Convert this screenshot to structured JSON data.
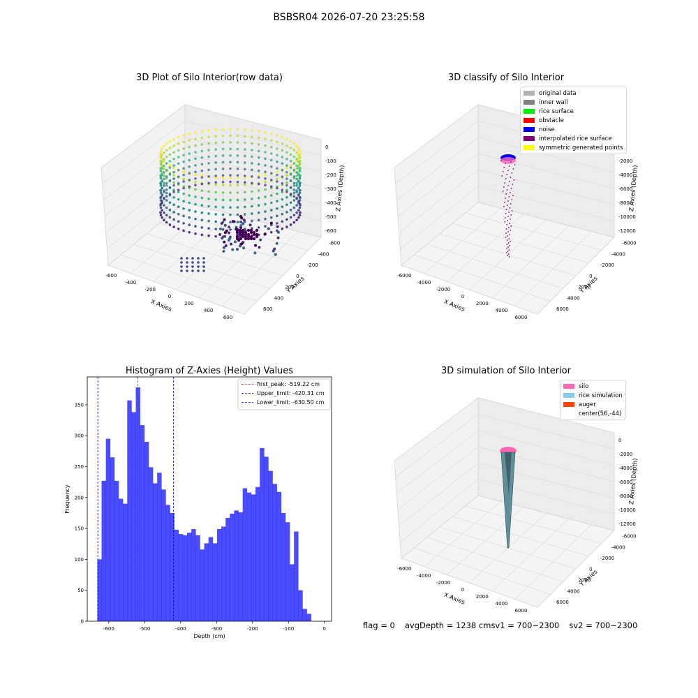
{
  "suptitle": "BSBSR04 2026-07-20 23:25:58",
  "panels": {
    "raw": {
      "title": "3D Plot of Silo Interior(row data)",
      "xlabel": "X Axies",
      "ylabel": "Y Axies",
      "zlabel": "Z Axies (Depth)",
      "x_ticks": [
        "-600",
        "-400",
        "-200",
        "0",
        "200",
        "400",
        "600"
      ],
      "y_ticks": [
        "-600",
        "-400",
        "-200",
        "0",
        "200",
        "400",
        "600"
      ],
      "z_ticks": [
        "0",
        "-100",
        "-200",
        "-300",
        "-400",
        "-500",
        "-600"
      ]
    },
    "classify": {
      "title": "3D classify of Silo Interior",
      "xlabel": "X Axies",
      "ylabel": "Y Axies",
      "zlabel": "Z Axies (Depth)",
      "x_ticks": [
        "-6000",
        "-4000",
        "-2000",
        "0",
        "2000",
        "4000",
        "6000"
      ],
      "y_ticks": [
        "-6000",
        "-4000",
        "-2000",
        "0",
        "2000",
        "4000",
        "6000"
      ],
      "z_ticks": [
        "0",
        "-2000",
        "-4000",
        "-6000",
        "-8000",
        "-10000",
        "-12000"
      ],
      "legend": [
        {
          "label": "original data",
          "color": "#b3b3b3"
        },
        {
          "label": "inner wall",
          "color": "#808080"
        },
        {
          "label": "rice surface",
          "color": "#00ee00"
        },
        {
          "label": "obstacle",
          "color": "#ff0000"
        },
        {
          "label": "noise",
          "color": "#0000ee"
        },
        {
          "label": "interpolated rice surface",
          "color": "#800080"
        },
        {
          "label": "symmetric generated points",
          "color": "#ffff00"
        }
      ]
    },
    "simulation": {
      "title": "3D simulation of Silo Interior",
      "xlabel": "X Axies",
      "ylabel": "Y Axies",
      "zlabel": "Z Axies (Depth)",
      "x_ticks": [
        "-6000",
        "-4000",
        "-2000",
        "0",
        "2000",
        "4000",
        "6000"
      ],
      "y_ticks": [
        "-6000",
        "-4000",
        "-2000",
        "0",
        "2000",
        "4000",
        "6000"
      ],
      "z_ticks": [
        "0",
        "-2000",
        "-4000",
        "-6000",
        "-8000",
        "-10000",
        "-12000"
      ],
      "legend": [
        {
          "label": "silo",
          "color": "#ff69b4"
        },
        {
          "label": "rice simulation",
          "color": "#87ceeb"
        },
        {
          "label": "auger",
          "color": "#ff4500"
        },
        {
          "label": "center(56,-44)",
          "color": "#ffffff"
        }
      ]
    }
  },
  "status": {
    "flag": "flag = 0",
    "avg": "avgDepth = 1238 cm",
    "sv1": "sv1 = 700~2300",
    "sv2": "sv2 = 700~2300"
  },
  "chart_data": {
    "type": "bar",
    "title": "Histogram of Z-Axies (Height) Values",
    "xlabel": "Depth (cm)",
    "ylabel": "Frequency",
    "xlim": [
      -660,
      20
    ],
    "ylim": [
      0,
      395
    ],
    "x_ticks": [
      -600,
      -500,
      -400,
      -300,
      -200,
      -100,
      0
    ],
    "y_ticks": [
      0,
      50,
      100,
      150,
      200,
      250,
      300,
      350
    ],
    "bin_start": -632,
    "bin_width": 11.9,
    "values": [
      100,
      227,
      295,
      265,
      227,
      198,
      190,
      357,
      338,
      378,
      317,
      290,
      249,
      223,
      240,
      213,
      188,
      175,
      148,
      141,
      139,
      143,
      149,
      139,
      116,
      126,
      136,
      126,
      149,
      153,
      167,
      174,
      179,
      176,
      215,
      208,
      205,
      217,
      280,
      266,
      243,
      222,
      209,
      175,
      160,
      92,
      145,
      50,
      20,
      12
    ],
    "color": "#0000ff",
    "lines": [
      {
        "label": "first_peak: -519.22 cm",
        "x": -519.22,
        "color": "#ff0000"
      },
      {
        "label": "Upper_limit: -420.31 cm",
        "x": -420.31,
        "color": "#0000cc"
      },
      {
        "label": "Lower_limit: -630.50 cm",
        "x": -630.5,
        "color": "#0000cc"
      }
    ]
  }
}
